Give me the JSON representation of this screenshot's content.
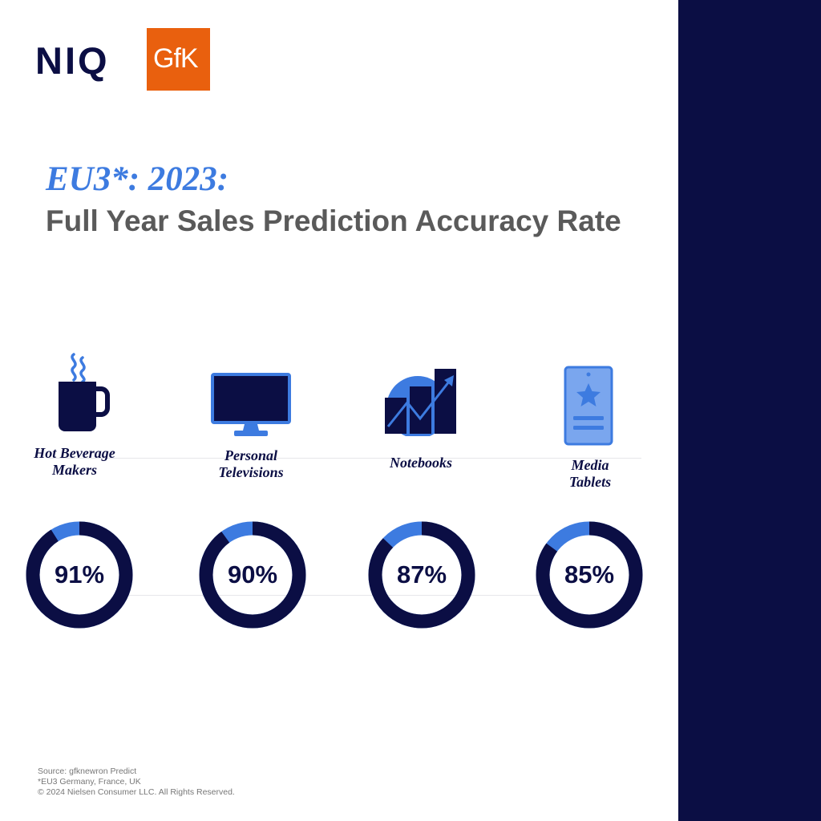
{
  "brand": {
    "niq": "NIQ",
    "gfk": "GfK",
    "accent": "#3d7be0",
    "navy": "#0b0e44",
    "orange": "#e9600e"
  },
  "title": {
    "main": "EU3*: 2023:",
    "sub": "Full Year Sales Prediction Accuracy Rate"
  },
  "chart_data": {
    "type": "pie",
    "title": "EU3*: 2023: Full Year Sales Prediction Accuracy Rate",
    "categories": [
      "Hot Beverage Makers",
      "Personal Televisions",
      "Notebooks",
      "Media Tablets"
    ],
    "values": [
      91,
      90,
      87,
      85
    ],
    "value_labels": [
      "91%",
      "90%",
      "87%",
      "85%"
    ],
    "unit": "%",
    "max": 100,
    "style": "donut",
    "colors": {
      "value": "#0b0e44",
      "remainder": "#3d7be0"
    }
  },
  "icons": [
    "coffee-mug-icon",
    "television-icon",
    "growth-chart-icon",
    "tablet-star-icon"
  ],
  "footer": {
    "source": "Source: gfknewron Predict",
    "note": "*EU3 Germany, France, UK",
    "copyright": "© 2024 Nielsen Consumer LLC. All Rights Reserved."
  }
}
